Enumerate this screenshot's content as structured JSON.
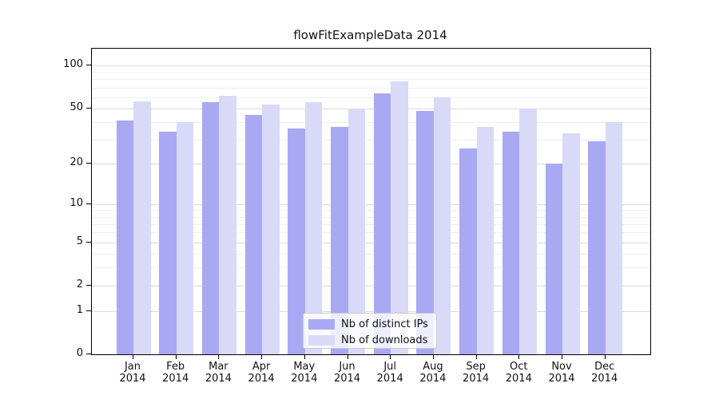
{
  "chart_data": {
    "type": "bar",
    "title": "flowFitExampleData 2014",
    "categories": [
      "Jan",
      "Feb",
      "Mar",
      "Apr",
      "May",
      "Jun",
      "Jul",
      "Aug",
      "Sep",
      "Oct",
      "Nov",
      "Dec"
    ],
    "year": "2014",
    "series": [
      {
        "name": "Nb of distinct IPs",
        "color": "#a9a9f3",
        "values": [
          41,
          34,
          55,
          45,
          36,
          37,
          64,
          48,
          26,
          34,
          20,
          29
        ]
      },
      {
        "name": "Nb of downloads",
        "color": "#d9d9f8",
        "values": [
          56,
          40,
          61,
          53,
          55,
          50,
          77,
          60,
          37,
          50,
          33,
          40
        ]
      }
    ],
    "yscale": "log10(value+1)",
    "ylim": [
      0,
      110
    ],
    "yticks": [
      100,
      50,
      20,
      10,
      5,
      2,
      1,
      0
    ],
    "minor_gridlines": [
      3,
      4,
      6,
      7,
      8,
      9,
      30,
      40,
      60,
      70,
      80,
      90
    ],
    "grid": true,
    "legend_position": "lower center",
    "colors": {
      "axis": "#000000",
      "major_grid": "#dbdbdb",
      "minor_grid": "#efefef",
      "background": "#ffffff"
    }
  }
}
